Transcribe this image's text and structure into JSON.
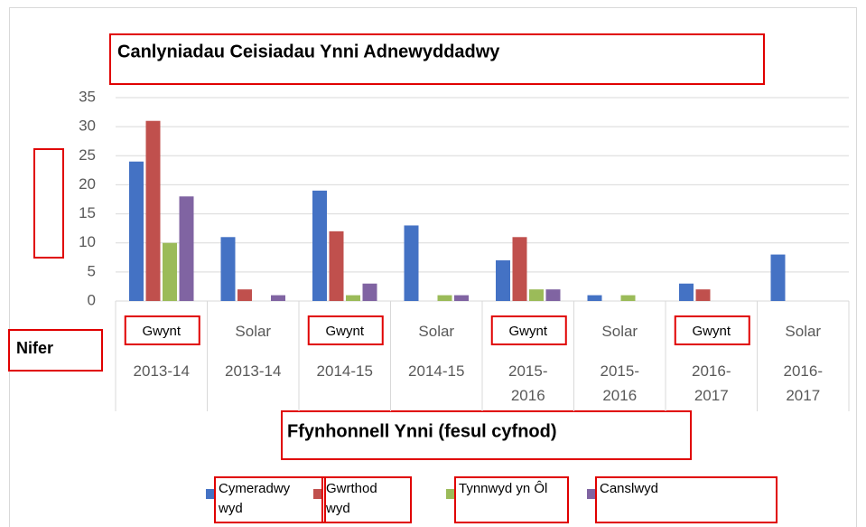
{
  "chart_data": {
    "type": "bar",
    "title": "Canlyniadau Ceisiadau Ynni Adnewyddadwy",
    "y_label": "Nifer",
    "x_label": "Ffynhonnell Ynni (fesul cyfnod)",
    "categories": [
      "Gwynt",
      "Solar",
      "Gwynt",
      "Solar",
      "Gwynt",
      "Solar",
      "Gwynt",
      "Solar"
    ],
    "category_periods": [
      "2013-14",
      "2013-14",
      "2014-15",
      "2014-15",
      "2015-2016",
      "2015-2016",
      "2016-2017",
      "2016-2017"
    ],
    "series": [
      {
        "name": "Cymeradwywyd",
        "color": "#4472c4",
        "values": [
          24,
          11,
          19,
          13,
          7,
          1,
          3,
          8
        ]
      },
      {
        "name": "Gwrthodwyd",
        "color": "#c0504d",
        "values": [
          31,
          2,
          12,
          0,
          11,
          0,
          2,
          0
        ]
      },
      {
        "name": "Tynnwyd yn Ôl",
        "color": "#9bbb59",
        "values": [
          10,
          0,
          1,
          1,
          2,
          1,
          0,
          0
        ]
      },
      {
        "name": "Canslwyd",
        "color": "#8064a2",
        "values": [
          18,
          1,
          3,
          1,
          2,
          0,
          0,
          0
        ]
      }
    ],
    "ylim": [
      0,
      35
    ],
    "yticks": [
      0,
      5,
      10,
      15,
      20,
      25,
      30,
      35
    ],
    "grid": true
  }
}
